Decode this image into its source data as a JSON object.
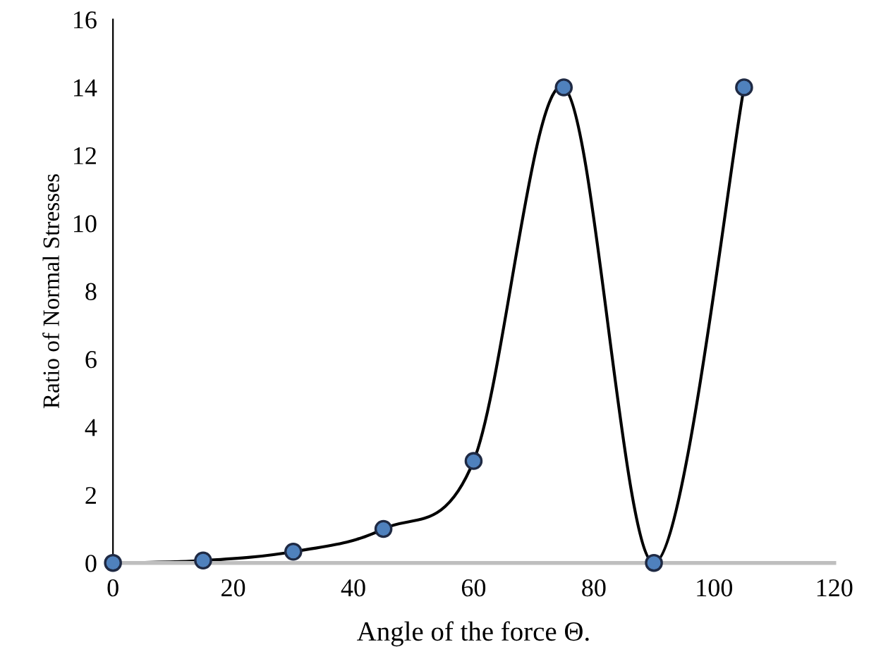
{
  "chart_data": {
    "type": "line",
    "xlabel": "Angle of the force Θ.",
    "ylabel": "Ratio of Normal Stresses",
    "x": [
      0,
      15,
      30,
      45,
      60,
      75,
      90,
      105
    ],
    "series": [
      {
        "color": "#4f81bd",
        "values": [
          0,
          0.07,
          0.33,
          1,
          3,
          14,
          0,
          14
        ]
      }
    ],
    "xlim": [
      0,
      120
    ],
    "xticks": [
      0,
      20,
      40,
      60,
      80,
      100,
      120
    ],
    "ylim": [
      0,
      16
    ],
    "yticks": [
      0,
      2,
      4,
      6,
      8,
      10,
      12,
      14,
      16
    ],
    "marker": "circle",
    "line_style": "solid",
    "grid": false,
    "legend": false
  }
}
